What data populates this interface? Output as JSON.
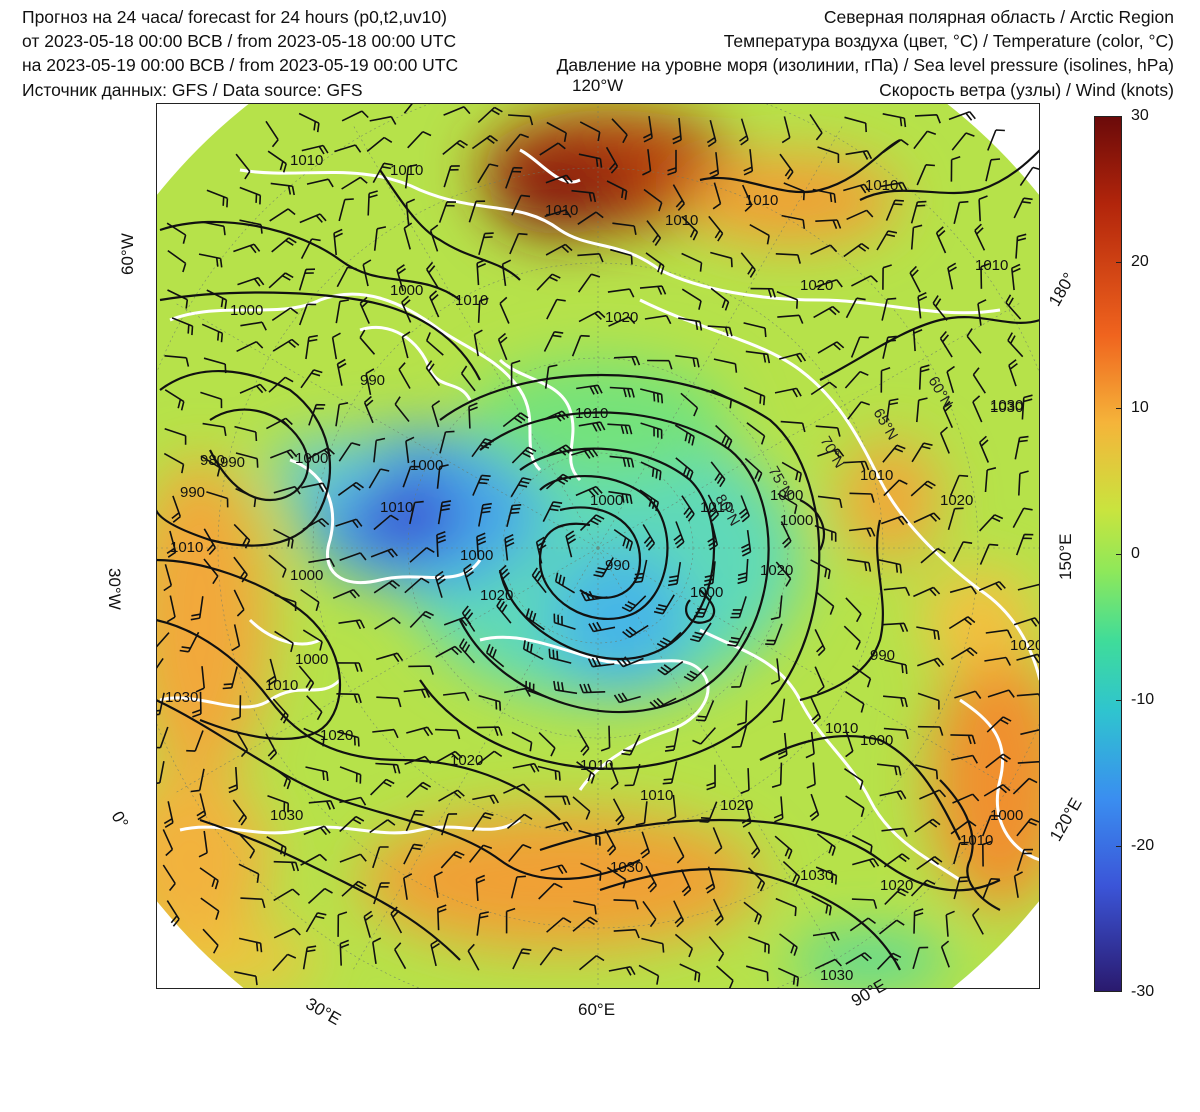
{
  "header": {
    "left": [
      "Прогноз на 24 часа/ forecast for 24 hours (p0,t2,uv10)",
      "от 2023-05-18 00:00 ВСВ / from 2023-05-18 00:00 UTC",
      "на 2023-05-19 00:00 ВСВ / from 2023-05-19 00:00 UTC",
      "Источник данных: GFS / Data source: GFS"
    ],
    "right": [
      "Северная полярная область / Arctic Region",
      "Температура воздуха (цвет, °C) / Temperature (color, °C)",
      "Давление на уровне моря (изолинии, гПа) / Sea level pressure (isolines, hPa)",
      "Скорость ветра (узлы) / Wind (knots)"
    ]
  },
  "colorbar": {
    "ticks": [
      "30",
      "20",
      "10",
      "0",
      "-10",
      "-20",
      "-30"
    ],
    "colors": [
      "#6b0a0a",
      "#c33b0c",
      "#f08a2a",
      "#f2c43a",
      "#b8e84a",
      "#5fe08a",
      "#3cc9c2",
      "#3a8ef0",
      "#3b4fd8",
      "#2a1a6e"
    ]
  },
  "map": {
    "longitude_labels": {
      "top": "120°W",
      "left_upper": "60°W",
      "left_middle": "30°W",
      "left_lower": "0°",
      "bottom_left": "30°E",
      "bottom_middle": "60°E",
      "bottom_right": "90°E",
      "right_lower": "120°E",
      "right_middle": "150°E",
      "right_upper": "180°"
    },
    "latitude_labels": [
      "60°N",
      "65°N",
      "70°N",
      "75°N",
      "80°N"
    ],
    "isobar_labels": [
      "1010",
      "1010",
      "1010",
      "1010",
      "1010",
      "1000",
      "1010",
      "1020",
      "1010",
      "1000",
      "990",
      "990",
      "1000",
      "980",
      "990",
      "1000",
      "1010",
      "1010",
      "1000",
      "1000",
      "1010",
      "1000",
      "990",
      "1000",
      "1020",
      "1020",
      "1030",
      "1000",
      "1020",
      "1010",
      "1000",
      "1030",
      "1010",
      "1030",
      "1020",
      "1020",
      "1010",
      "1010",
      "1020",
      "1030",
      "1030",
      "1020",
      "1030",
      "1010",
      "1010",
      "1020",
      "1000",
      "1010",
      "1030",
      "1020",
      "1010",
      "1000",
      "1000",
      "990"
    ]
  }
}
